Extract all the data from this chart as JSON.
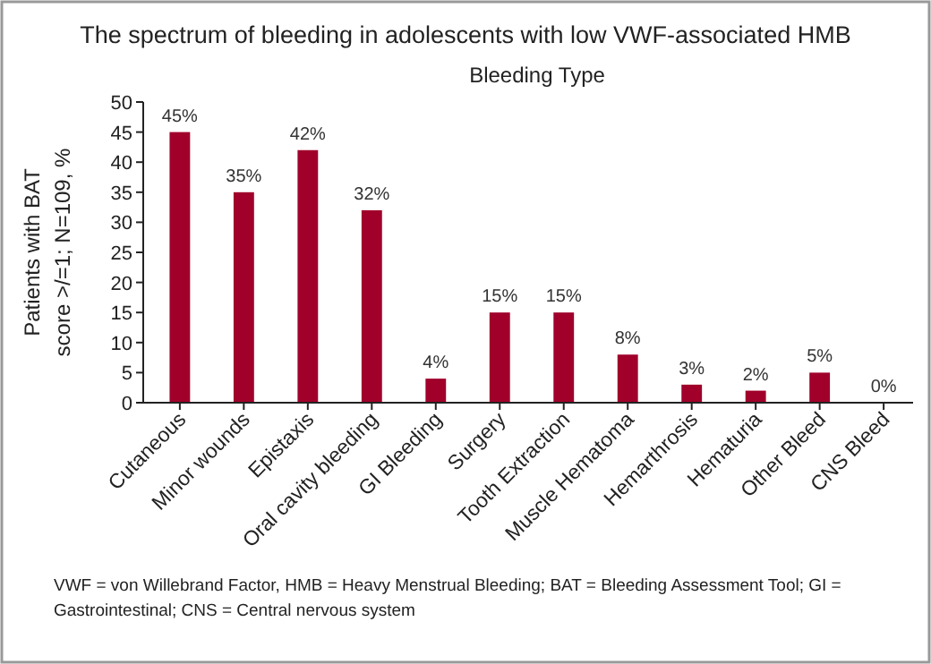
{
  "chart_data": {
    "type": "bar",
    "title": "The spectrum of bleeding in adolescents with low VWF-associated HMB",
    "subtitle": "Bleeding Type",
    "ylabel": "Patients with BAT score >/=1; N=109, %",
    "categories": [
      "Cutaneous",
      "Minor wounds",
      "Epistaxis",
      "Oral cavity bleeding",
      "GI Bleeding",
      "Surgery",
      "Tooth Extraction",
      "Muscle Hematoma",
      "Hemarthrosis",
      "Hematuria",
      "Other Bleed",
      "CNS Bleed"
    ],
    "values": [
      45,
      35,
      42,
      32,
      4,
      15,
      15,
      8,
      3,
      2,
      5,
      0
    ],
    "value_labels": [
      "45%",
      "35%",
      "42%",
      "32%",
      "4%",
      "15%",
      "15%",
      "8%",
      "3%",
      "2%",
      "5%",
      "0%"
    ],
    "color": "#a0002a",
    "ylim": [
      0,
      50
    ],
    "yticks": [
      0,
      5,
      10,
      15,
      20,
      25,
      30,
      35,
      40,
      45,
      50
    ],
    "grid": false,
    "annotations": [
      "VWF = von Willebrand Factor, HMB = Heavy Menstrual Bleeding; BAT = Bleeding Assessment Tool; GI = Gastrointestinal; CNS = Central nervous system"
    ]
  }
}
